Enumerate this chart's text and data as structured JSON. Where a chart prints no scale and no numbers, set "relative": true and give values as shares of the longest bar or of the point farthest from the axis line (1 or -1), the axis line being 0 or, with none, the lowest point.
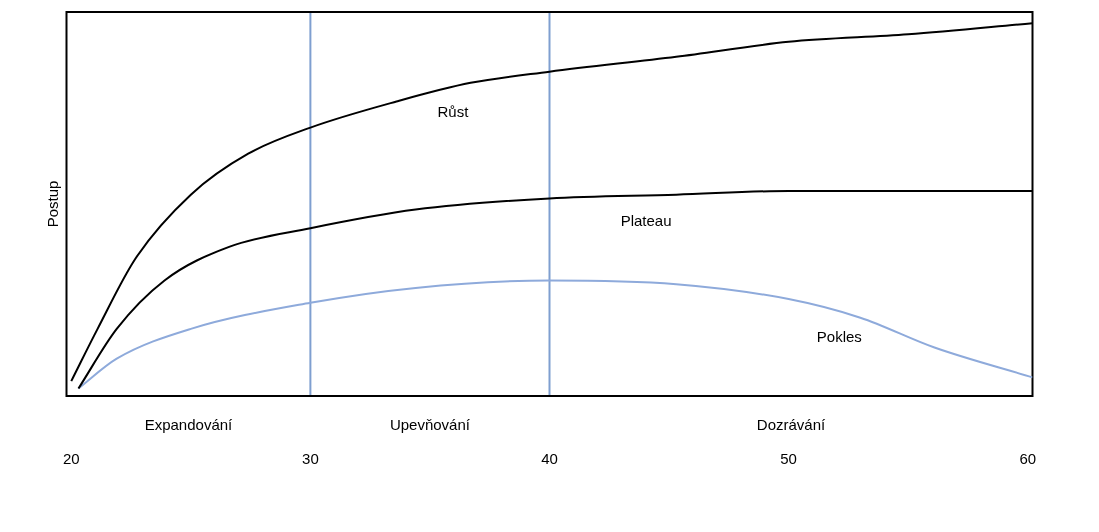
{
  "chart_data": {
    "type": "line",
    "relative": true,
    "ylabel": "Postup",
    "xlim": [
      19.8,
      60.2
    ],
    "xticks": [
      20,
      30,
      40,
      50,
      60
    ],
    "grid": false,
    "legend": false,
    "marker": "none",
    "series": [
      {
        "name": "Růst",
        "color": "#000000",
        "x": [
          20,
          21.1,
          22.7,
          25,
          27.4,
          30,
          33.6,
          36.7,
          40,
          45.3,
          50,
          55,
          60.2
        ],
        "values": [
          0.04,
          0.18,
          0.37,
          0.54,
          0.65,
          0.72,
          0.79,
          0.84,
          0.87,
          0.91,
          0.95,
          0.97,
          1
        ]
      },
      {
        "name": "Plateau",
        "color": "#000000",
        "x": [
          20.3,
          21.9,
          23.9,
          26.6,
          30,
          34.4,
          40,
          45.3,
          50,
          60.2
        ],
        "values": [
          0.02,
          0.18,
          0.31,
          0.4,
          0.45,
          0.5,
          0.53,
          0.54,
          0.55,
          0.55
        ]
      },
      {
        "name": "Pokles",
        "color": "#8eaadb",
        "x": [
          20.3,
          21.9,
          25,
          30,
          34.4,
          40,
          45.3,
          50,
          53,
          56.1,
          60.2
        ],
        "values": [
          0.02,
          0.1,
          0.18,
          0.25,
          0.29,
          0.31,
          0.3,
          0.26,
          0.21,
          0.13,
          0.05
        ]
      }
    ],
    "ref_lines": [
      {
        "axis": "x",
        "value": 30,
        "color": "#7f9fd0"
      },
      {
        "axis": "x",
        "value": 40,
        "color": "#7f9fd0"
      }
    ],
    "annotations": [
      "Expandování",
      "Upevňování",
      "Dozrávání"
    ]
  }
}
